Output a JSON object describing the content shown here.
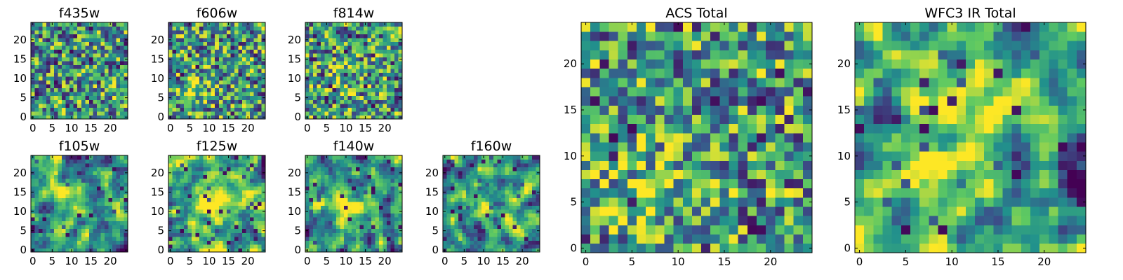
{
  "figure": {
    "background": "#ffffff",
    "colormap_name": "viridis",
    "colormap": [
      "#440154",
      "#3b528b",
      "#21918c",
      "#5ec962",
      "#fde725"
    ]
  },
  "chart_data": [
    {
      "type": "heatmap",
      "id": "f435w",
      "title": "f435w",
      "grid_size": 25,
      "xlim": [
        -0.5,
        24.5
      ],
      "ylim": [
        -0.5,
        24.5
      ],
      "xticks": [
        0,
        5,
        10,
        15,
        20
      ],
      "yticks": [
        0,
        5,
        10,
        15,
        20
      ],
      "value_scale": "normalized 0-1",
      "pattern": "noise",
      "seed": 11,
      "hotspots": []
    },
    {
      "type": "heatmap",
      "id": "f606w",
      "title": "f606w",
      "grid_size": 25,
      "xlim": [
        -0.5,
        24.5
      ],
      "ylim": [
        -0.5,
        24.5
      ],
      "xticks": [
        0,
        5,
        10,
        15,
        20
      ],
      "yticks": [
        0,
        5,
        10,
        15,
        20
      ],
      "value_scale": "normalized 0-1",
      "pattern": "noise",
      "seed": 23,
      "hotspots": [
        {
          "x": 6,
          "y": 7,
          "amp": 0.3,
          "sigma": 2.5
        }
      ]
    },
    {
      "type": "heatmap",
      "id": "f814w",
      "title": "f814w",
      "grid_size": 25,
      "xlim": [
        -0.5,
        24.5
      ],
      "ylim": [
        -0.5,
        24.5
      ],
      "xticks": [
        0,
        5,
        10,
        15,
        20
      ],
      "yticks": [
        0,
        5,
        10,
        15,
        20
      ],
      "value_scale": "normalized 0-1",
      "pattern": "noise",
      "seed": 37,
      "hotspots": [
        {
          "x": 8,
          "y": 9,
          "amp": 0.25,
          "sigma": 3
        }
      ]
    },
    {
      "type": "heatmap",
      "id": "f105w",
      "title": "f105w",
      "grid_size": 25,
      "xlim": [
        -0.5,
        24.5
      ],
      "ylim": [
        -0.5,
        24.5
      ],
      "xticks": [
        0,
        5,
        10,
        15,
        20
      ],
      "yticks": [
        0,
        5,
        10,
        15,
        20
      ],
      "value_scale": "normalized 0-1",
      "pattern": "smooth",
      "seed": 41,
      "hotspots": [
        {
          "x": 11,
          "y": 12,
          "amp": 0.3,
          "sigma": 3
        }
      ]
    },
    {
      "type": "heatmap",
      "id": "f125w",
      "title": "f125w",
      "grid_size": 25,
      "xlim": [
        -0.5,
        24.5
      ],
      "ylim": [
        -0.5,
        24.5
      ],
      "xticks": [
        0,
        5,
        10,
        15,
        20
      ],
      "yticks": [
        0,
        5,
        10,
        15,
        20
      ],
      "value_scale": "normalized 0-1",
      "pattern": "smooth-bright",
      "seed": 53,
      "hotspots": [
        {
          "x": 12,
          "y": 12,
          "amp": 0.35,
          "sigma": 4
        }
      ]
    },
    {
      "type": "heatmap",
      "id": "f140w",
      "title": "f140w",
      "grid_size": 25,
      "xlim": [
        -0.5,
        24.5
      ],
      "ylim": [
        -0.5,
        24.5
      ],
      "xticks": [
        0,
        5,
        10,
        15,
        20
      ],
      "yticks": [
        0,
        5,
        10,
        15,
        20
      ],
      "value_scale": "normalized 0-1",
      "pattern": "smooth",
      "seed": 67,
      "hotspots": [
        {
          "x": 10,
          "y": 11,
          "amp": 0.3,
          "sigma": 3.5
        }
      ]
    },
    {
      "type": "heatmap",
      "id": "f160w",
      "title": "f160w",
      "grid_size": 25,
      "xlim": [
        -0.5,
        24.5
      ],
      "ylim": [
        -0.5,
        24.5
      ],
      "xticks": [
        0,
        5,
        10,
        15,
        20
      ],
      "yticks": [
        0,
        5,
        10,
        15,
        20
      ],
      "value_scale": "normalized 0-1",
      "pattern": "smooth",
      "seed": 79,
      "hotspots": [
        {
          "x": 10,
          "y": 10,
          "amp": 0.25,
          "sigma": 3.5
        }
      ]
    },
    {
      "type": "heatmap",
      "id": "acs-total",
      "title": "ACS Total",
      "grid_size": 25,
      "xlim": [
        -0.5,
        24.5
      ],
      "ylim": [
        -0.5,
        24.5
      ],
      "xticks": [
        0,
        5,
        10,
        15,
        20
      ],
      "yticks": [
        0,
        5,
        10,
        15,
        20
      ],
      "value_scale": "normalized 0-1",
      "pattern": "noise",
      "seed": 97,
      "hotspots": [
        {
          "x": 6,
          "y": 7,
          "amp": 0.3,
          "sigma": 3
        }
      ]
    },
    {
      "type": "heatmap",
      "id": "wfc3-ir-total",
      "title": "WFC3 IR Total",
      "grid_size": 25,
      "xlim": [
        -0.5,
        24.5
      ],
      "ylim": [
        -0.5,
        24.5
      ],
      "xticks": [
        0,
        5,
        10,
        15,
        20
      ],
      "yticks": [
        0,
        5,
        10,
        15,
        20
      ],
      "value_scale": "normalized 0-1",
      "pattern": "smooth-bright",
      "seed": 113,
      "hotspots": [
        {
          "x": 11,
          "y": 12,
          "amp": 0.35,
          "sigma": 4
        },
        {
          "x": 17,
          "y": 10,
          "amp": -0.55,
          "sigma": 1.2
        },
        {
          "x": 23,
          "y": 7,
          "amp": -0.6,
          "sigma": 1
        },
        {
          "x": 5,
          "y": 13,
          "amp": -0.4,
          "sigma": 1
        }
      ]
    }
  ]
}
